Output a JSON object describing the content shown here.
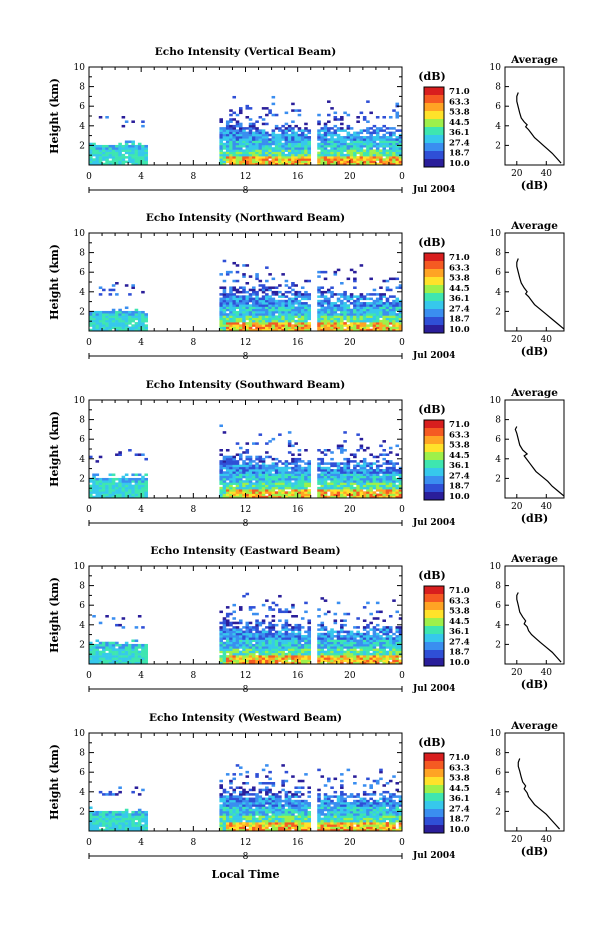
{
  "chart_data": {
    "type": "heatmap",
    "colorbar": {
      "unit_label": "(dB)",
      "ticks": [
        "71.0",
        "63.3",
        "53.8",
        "44.5",
        "36.1",
        "27.4",
        "18.7",
        "10.0"
      ],
      "colors": [
        "#2a1e9a",
        "#2f4fd6",
        "#3a8ef0",
        "#36c8ec",
        "#3ee6b0",
        "#9ef04a",
        "#ffe22a",
        "#ffa424",
        "#f55a22",
        "#d81e1e"
      ]
    },
    "x_axis": {
      "ticks": [
        "0",
        "4",
        "8",
        "12",
        "16",
        "20",
        "0"
      ],
      "range": [
        0,
        24
      ],
      "date_label": "Jul 2004",
      "day_marker": "8",
      "xlabel": "Local Time"
    },
    "y_axis": {
      "label": "Height (km)",
      "ticks": [
        "2",
        "4",
        "6",
        "8",
        "10"
      ],
      "range": [
        0,
        10
      ]
    },
    "average_panel": {
      "title": "Average",
      "xlabel": "(dB)",
      "x_ticks": [
        "20",
        "40"
      ],
      "x_range": [
        12,
        52
      ],
      "y_ticks": [
        "2",
        "4",
        "6",
        "8",
        "10"
      ]
    },
    "panels": [
      {
        "title": "Echo Intensity (Vertical Beam)",
        "profile": [
          [
            50,
            0.2
          ],
          [
            47,
            0.7
          ],
          [
            44,
            1.2
          ],
          [
            41,
            1.6
          ],
          [
            38,
            2.0
          ],
          [
            35,
            2.4
          ],
          [
            32,
            2.8
          ],
          [
            30,
            3.2
          ],
          [
            28,
            3.6
          ],
          [
            26,
            3.9
          ],
          [
            27,
            4.1
          ],
          [
            25,
            4.4
          ],
          [
            23,
            4.8
          ],
          [
            22,
            5.3
          ],
          [
            21,
            5.9
          ],
          [
            20,
            6.5
          ],
          [
            20,
            7.0
          ],
          [
            21,
            7.4
          ]
        ]
      },
      {
        "title": "Echo Intensity (Northward Beam)",
        "profile": [
          [
            52,
            0.2
          ],
          [
            48,
            0.7
          ],
          [
            44,
            1.2
          ],
          [
            40,
            1.7
          ],
          [
            36,
            2.2
          ],
          [
            32,
            2.7
          ],
          [
            30,
            3.1
          ],
          [
            28,
            3.5
          ],
          [
            26,
            3.8
          ],
          [
            27,
            4.0
          ],
          [
            25,
            4.4
          ],
          [
            23,
            4.9
          ],
          [
            22,
            5.4
          ],
          [
            21,
            6.0
          ],
          [
            20,
            6.6
          ],
          [
            20,
            7.0
          ],
          [
            21,
            7.4
          ]
        ]
      },
      {
        "title": "Echo Intensity (Southward Beam)",
        "profile": [
          [
            52,
            0.2
          ],
          [
            48,
            0.7
          ],
          [
            44,
            1.2
          ],
          [
            41,
            1.7
          ],
          [
            37,
            2.2
          ],
          [
            33,
            2.7
          ],
          [
            31,
            3.1
          ],
          [
            29,
            3.5
          ],
          [
            27,
            3.9
          ],
          [
            25,
            4.3
          ],
          [
            27,
            4.5
          ],
          [
            24,
            4.9
          ],
          [
            22,
            5.4
          ],
          [
            21,
            6.0
          ],
          [
            20,
            6.6
          ],
          [
            19,
            7.0
          ],
          [
            20,
            7.3
          ]
        ]
      },
      {
        "title": "Echo Intensity (Eastward Beam)",
        "profile": [
          [
            50,
            0.2
          ],
          [
            47,
            0.7
          ],
          [
            44,
            1.2
          ],
          [
            40,
            1.7
          ],
          [
            36,
            2.2
          ],
          [
            33,
            2.6
          ],
          [
            30,
            3.0
          ],
          [
            28,
            3.4
          ],
          [
            27,
            3.8
          ],
          [
            25,
            4.1
          ],
          [
            26,
            4.4
          ],
          [
            24,
            4.8
          ],
          [
            22,
            5.3
          ],
          [
            21,
            6.0
          ],
          [
            20,
            6.6
          ],
          [
            20,
            7.0
          ],
          [
            21,
            7.3
          ]
        ]
      },
      {
        "title": "Echo Intensity (Westward Beam)",
        "profile": [
          [
            49,
            0.2
          ],
          [
            46,
            0.7
          ],
          [
            43,
            1.2
          ],
          [
            40,
            1.7
          ],
          [
            36,
            2.2
          ],
          [
            32,
            2.7
          ],
          [
            30,
            3.1
          ],
          [
            28,
            3.5
          ],
          [
            27,
            3.9
          ],
          [
            25,
            4.3
          ],
          [
            26,
            4.6
          ],
          [
            24,
            5.0
          ],
          [
            23,
            5.5
          ],
          [
            22,
            6.1
          ],
          [
            21,
            6.6
          ],
          [
            21,
            7.0
          ],
          [
            22,
            7.4
          ]
        ]
      }
    ]
  }
}
